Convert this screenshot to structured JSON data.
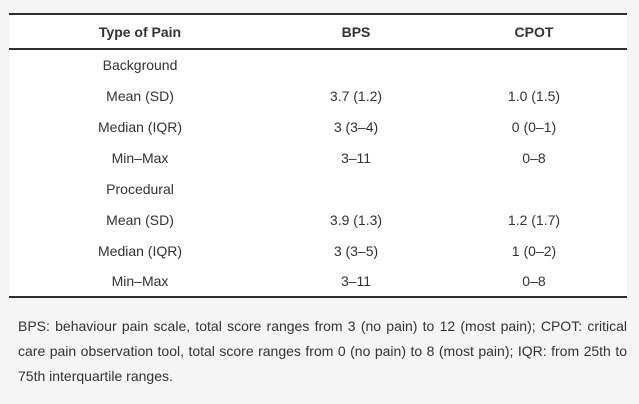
{
  "colors": {
    "page_background": "#f5f5f5",
    "table_background": "#ffffff",
    "rule": "#2e2e2e",
    "text": "#333333"
  },
  "table": {
    "columns": [
      "Type of Pain",
      "BPS",
      "CPOT"
    ],
    "rows": [
      {
        "label": "Background",
        "bps": "",
        "cpot": ""
      },
      {
        "label": "Mean (SD)",
        "bps": "3.7 (1.2)",
        "cpot": "1.0 (1.5)"
      },
      {
        "label": "Median (IQR)",
        "bps": "3 (3–4)",
        "cpot": "0 (0–1)"
      },
      {
        "label": "Min–Max",
        "bps": "3–11",
        "cpot": "0–8"
      },
      {
        "label": "Procedural",
        "bps": "",
        "cpot": ""
      },
      {
        "label": "Mean (SD)",
        "bps": "3.9 (1.3)",
        "cpot": "1.2 (1.7)"
      },
      {
        "label": "Median (IQR)",
        "bps": "3 (3–5)",
        "cpot": "1 (0–2)"
      },
      {
        "label": "Min–Max",
        "bps": "3–11",
        "cpot": "0–8"
      }
    ]
  },
  "chart_data": {
    "type": "table",
    "columns": [
      "Type of Pain",
      "BPS",
      "CPOT"
    ],
    "rows": [
      [
        "Background",
        "",
        ""
      ],
      [
        "Mean (SD)",
        "3.7 (1.2)",
        "1.0 (1.5)"
      ],
      [
        "Median (IQR)",
        "3 (3–4)",
        "0 (0–1)"
      ],
      [
        "Min–Max",
        "3–11",
        "0–8"
      ],
      [
        "Procedural",
        "",
        ""
      ],
      [
        "Mean (SD)",
        "3.9 (1.3)",
        "1.2 (1.7)"
      ],
      [
        "Median (IQR)",
        "3 (3–5)",
        "1 (0–2)"
      ],
      [
        "Min–Max",
        "3–11",
        "0–8"
      ]
    ]
  },
  "footnote": "BPS: behaviour pain scale, total score ranges from 3 (no pain) to 12 (most pain); CPOT: critical care pain observation tool, total score ranges from 0 (no pain) to 8 (most pain); IQR: from 25th to 75th interquartile ranges."
}
